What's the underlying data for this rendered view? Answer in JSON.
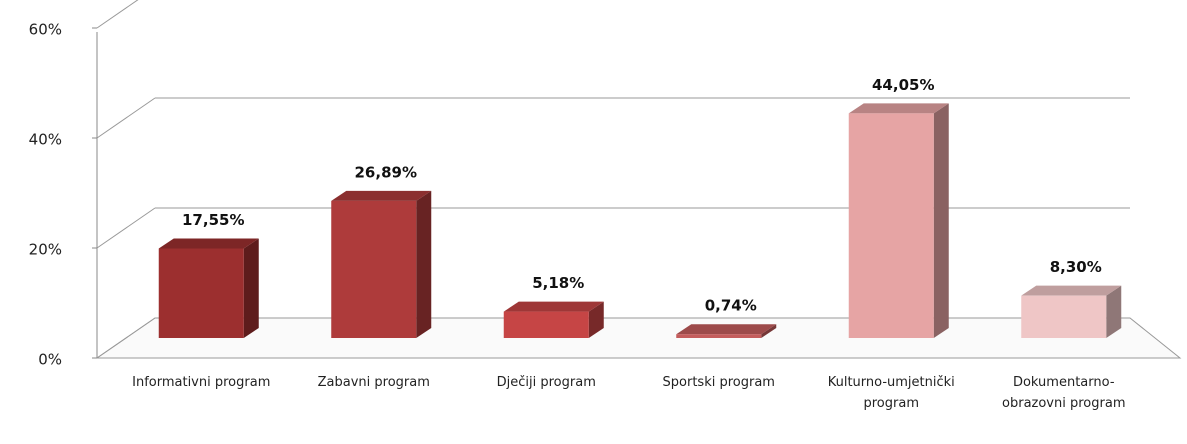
{
  "chart_data": {
    "type": "bar3d",
    "categories": [
      "Informativni program",
      "Zabavni program",
      "Dječiji program",
      "Sportski program",
      "Kulturno-umjetnički program",
      "Dokumentarno-obrazovni program"
    ],
    "values": [
      17.55,
      26.89,
      5.18,
      0.74,
      44.05,
      8.3
    ],
    "value_labels": [
      "17,55%",
      "26,89%",
      "5,18%",
      "0,74%",
      "44,05%",
      "8,30%"
    ],
    "colors": [
      "#9c2f2f",
      "#ae3b3b",
      "#c64545",
      "#c45c5c",
      "#e6a4a4",
      "#efc6c6"
    ],
    "ylim": [
      0,
      60
    ],
    "yticks": [
      {
        "value": 0,
        "label": "0%"
      },
      {
        "value": 20,
        "label": "20%"
      },
      {
        "value": 40,
        "label": "40%"
      },
      {
        "value": 60,
        "label": "60%"
      }
    ],
    "grid": true
  }
}
